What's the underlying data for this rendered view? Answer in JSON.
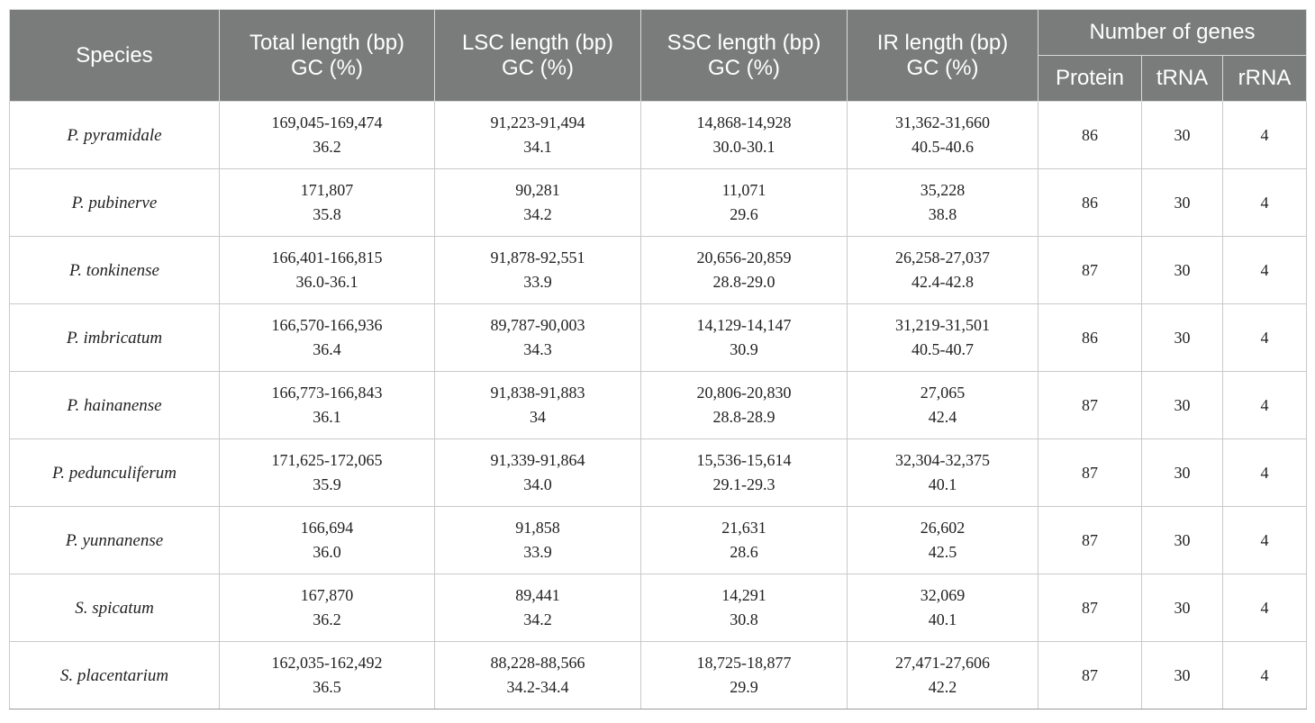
{
  "headers": {
    "species": "Species",
    "total": [
      "Total length (bp)",
      "GC (%)"
    ],
    "lsc": [
      "LSC length (bp)",
      "GC (%)"
    ],
    "ssc": [
      "SSC length (bp)",
      "GC (%)"
    ],
    "ir": [
      "IR length (bp)",
      "GC (%)"
    ],
    "genes": "Number of genes",
    "protein": "Protein",
    "trna": "tRNA",
    "rrna": "rRNA"
  },
  "rows": [
    {
      "species": "P. pyramidale",
      "total_len": "169,045-169,474",
      "total_gc": "36.2",
      "lsc_len": "91,223-91,494",
      "lsc_gc": "34.1",
      "ssc_len": "14,868-14,928",
      "ssc_gc": "30.0-30.1",
      "ir_len": "31,362-31,660",
      "ir_gc": "40.5-40.6",
      "protein": "86",
      "trna": "30",
      "rrna": "4"
    },
    {
      "species": "P. pubinerve",
      "total_len": "171,807",
      "total_gc": "35.8",
      "lsc_len": "90,281",
      "lsc_gc": "34.2",
      "ssc_len": "11,071",
      "ssc_gc": "29.6",
      "ir_len": "35,228",
      "ir_gc": "38.8",
      "protein": "86",
      "trna": "30",
      "rrna": "4"
    },
    {
      "species": "P. tonkinense",
      "total_len": "166,401-166,815",
      "total_gc": "36.0-36.1",
      "lsc_len": "91,878-92,551",
      "lsc_gc": "33.9",
      "ssc_len": "20,656-20,859",
      "ssc_gc": "28.8-29.0",
      "ir_len": "26,258-27,037",
      "ir_gc": "42.4-42.8",
      "protein": "87",
      "trna": "30",
      "rrna": "4"
    },
    {
      "species": "P. imbricatum",
      "total_len": "166,570-166,936",
      "total_gc": "36.4",
      "lsc_len": "89,787-90,003",
      "lsc_gc": "34.3",
      "ssc_len": "14,129-14,147",
      "ssc_gc": "30.9",
      "ir_len": "31,219-31,501",
      "ir_gc": "40.5-40.7",
      "protein": "86",
      "trna": "30",
      "rrna": "4"
    },
    {
      "species": "P. hainanense",
      "total_len": "166,773-166,843",
      "total_gc": "36.1",
      "lsc_len": "91,838-91,883",
      "lsc_gc": "34",
      "ssc_len": "20,806-20,830",
      "ssc_gc": "28.8-28.9",
      "ir_len": "27,065",
      "ir_gc": "42.4",
      "protein": "87",
      "trna": "30",
      "rrna": "4"
    },
    {
      "species": "P. pedunculiferum",
      "total_len": "171,625-172,065",
      "total_gc": "35.9",
      "lsc_len": "91,339-91,864",
      "lsc_gc": "34.0",
      "ssc_len": "15,536-15,614",
      "ssc_gc": "29.1-29.3",
      "ir_len": "32,304-32,375",
      "ir_gc": "40.1",
      "protein": "87",
      "trna": "30",
      "rrna": "4"
    },
    {
      "species": "P. yunnanense",
      "total_len": "166,694",
      "total_gc": "36.0",
      "lsc_len": "91,858",
      "lsc_gc": "33.9",
      "ssc_len": "21,631",
      "ssc_gc": "28.6",
      "ir_len": "26,602",
      "ir_gc": "42.5",
      "protein": "87",
      "trna": "30",
      "rrna": "4"
    },
    {
      "species": "S. spicatum",
      "total_len": "167,870",
      "total_gc": "36.2",
      "lsc_len": "89,441",
      "lsc_gc": "34.2",
      "ssc_len": "14,291",
      "ssc_gc": "30.8",
      "ir_len": "32,069",
      "ir_gc": "40.1",
      "protein": "87",
      "trna": "30",
      "rrna": "4"
    },
    {
      "species": "S. placentarium",
      "total_len": "162,035-162,492",
      "total_gc": "36.5",
      "lsc_len": "88,228-88,566",
      "lsc_gc": "34.2-34.4",
      "ssc_len": "18,725-18,877",
      "ssc_gc": "29.9",
      "ir_len": "27,471-27,606",
      "ir_gc": "42.2",
      "protein": "87",
      "trna": "30",
      "rrna": "4"
    }
  ],
  "colors": {
    "header_bg": "#7a7c7b",
    "header_text": "#ffffff",
    "grid": "#c9c9c9"
  }
}
